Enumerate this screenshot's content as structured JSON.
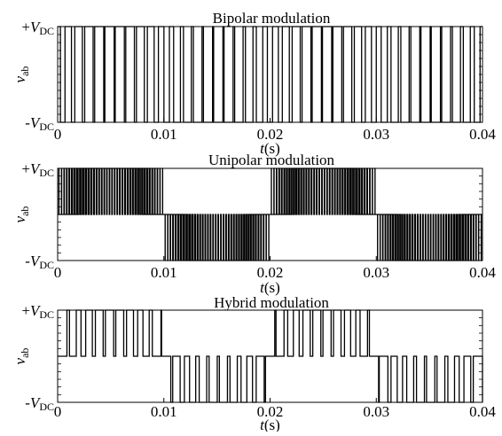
{
  "chart_data": [
    {
      "type": "line",
      "title": "Bipolar modulation",
      "xlabel": {
        "var": "t",
        "unit": "(s)"
      },
      "ylabel": {
        "var": "v",
        "sub": "ab"
      },
      "xlim": [
        0,
        0.04
      ],
      "ylim": [
        -1,
        1
      ],
      "xticks": [
        "0",
        "0.01",
        "0.02",
        "0.03",
        "0.04"
      ],
      "yticks": [
        {
          "sign": "+",
          "var": "V",
          "sub": "DC",
          "value": 1
        },
        {
          "sign": "-",
          "var": "V",
          "sub": "DC",
          "value": -1
        }
      ],
      "waveform": {
        "kind": "bipolar",
        "carrier_periods": 41,
        "levels": [
          -1,
          1
        ]
      }
    },
    {
      "type": "line",
      "title": "Unipolar modulation",
      "xlabel": {
        "var": "t",
        "unit": "(s)"
      },
      "ylabel": {
        "var": "v",
        "sub": "ab"
      },
      "xlim": [
        0,
        0.04
      ],
      "ylim": [
        -1,
        1
      ],
      "xticks": [
        "0",
        "0.01",
        "0.02",
        "0.03",
        "0.04"
      ],
      "yticks": [
        {
          "sign": "+",
          "var": "V",
          "sub": "DC",
          "value": 1
        },
        {
          "sign": "-",
          "var": "V",
          "sub": "DC",
          "value": -1
        }
      ],
      "waveform": {
        "kind": "unipolar",
        "carrier_periods": 82,
        "levels": [
          -1,
          0,
          1
        ]
      }
    },
    {
      "type": "line",
      "title": "Hybrid modulation",
      "xlabel": {
        "var": "t",
        "unit": "(s)"
      },
      "ylabel": {
        "var": "v",
        "sub": "ab"
      },
      "xlim": [
        0,
        0.04
      ],
      "ylim": [
        -1,
        1
      ],
      "xticks": [
        "0",
        "0.01",
        "0.02",
        "0.03",
        "0.04"
      ],
      "yticks": [
        {
          "sign": "+",
          "var": "V",
          "sub": "DC",
          "value": 1
        },
        {
          "sign": "-",
          "var": "V",
          "sub": "DC",
          "value": -1
        }
      ],
      "waveform": {
        "kind": "hybrid",
        "carrier_periods": 41,
        "levels": [
          -1,
          0,
          1
        ]
      }
    }
  ]
}
